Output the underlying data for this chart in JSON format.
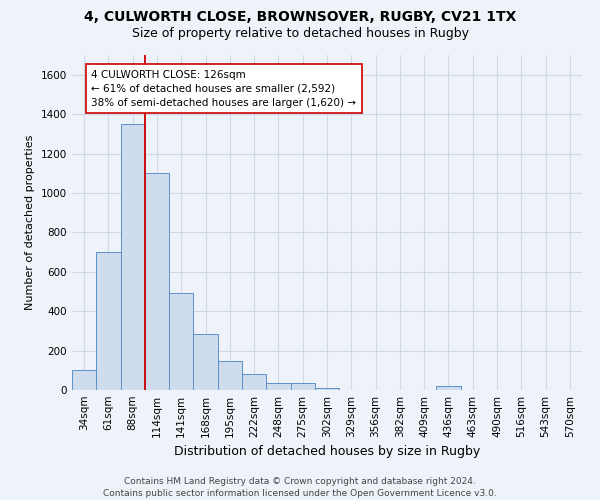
{
  "title1": "4, CULWORTH CLOSE, BROWNSOVER, RUGBY, CV21 1TX",
  "title2": "Size of property relative to detached houses in Rugby",
  "xlabel": "Distribution of detached houses by size in Rugby",
  "ylabel": "Number of detached properties",
  "categories": [
    "34sqm",
    "61sqm",
    "88sqm",
    "114sqm",
    "141sqm",
    "168sqm",
    "195sqm",
    "222sqm",
    "248sqm",
    "275sqm",
    "302sqm",
    "329sqm",
    "356sqm",
    "382sqm",
    "409sqm",
    "436sqm",
    "463sqm",
    "490sqm",
    "516sqm",
    "543sqm",
    "570sqm"
  ],
  "values": [
    100,
    700,
    1350,
    1100,
    490,
    285,
    145,
    80,
    35,
    35,
    10,
    0,
    0,
    0,
    0,
    20,
    0,
    0,
    0,
    0,
    0
  ],
  "bar_color": "#cfdcee",
  "bar_edge_color": "#5b8fc9",
  "grid_color": "#d0d8e8",
  "background_color": "#eef2f9",
  "vline_color": "#cc0000",
  "annotation_line1": "4 CULWORTH CLOSE: 126sqm",
  "annotation_line2": "← 61% of detached houses are smaller (2,592)",
  "annotation_line3": "38% of semi-detached houses are larger (1,620) →",
  "annotation_box_color": "#ffffff",
  "annotation_box_edge_color": "#cc0000",
  "ylim": [
    0,
    1700
  ],
  "yticks": [
    0,
    200,
    400,
    600,
    800,
    1000,
    1200,
    1400,
    1600
  ],
  "footer": "Contains HM Land Registry data © Crown copyright and database right 2024.\nContains public sector information licensed under the Open Government Licence v3.0.",
  "title1_fontsize": 10,
  "title2_fontsize": 9,
  "xlabel_fontsize": 9,
  "ylabel_fontsize": 8,
  "tick_fontsize": 7.5,
  "annotation_fontsize": 7.5,
  "footer_fontsize": 6.5
}
